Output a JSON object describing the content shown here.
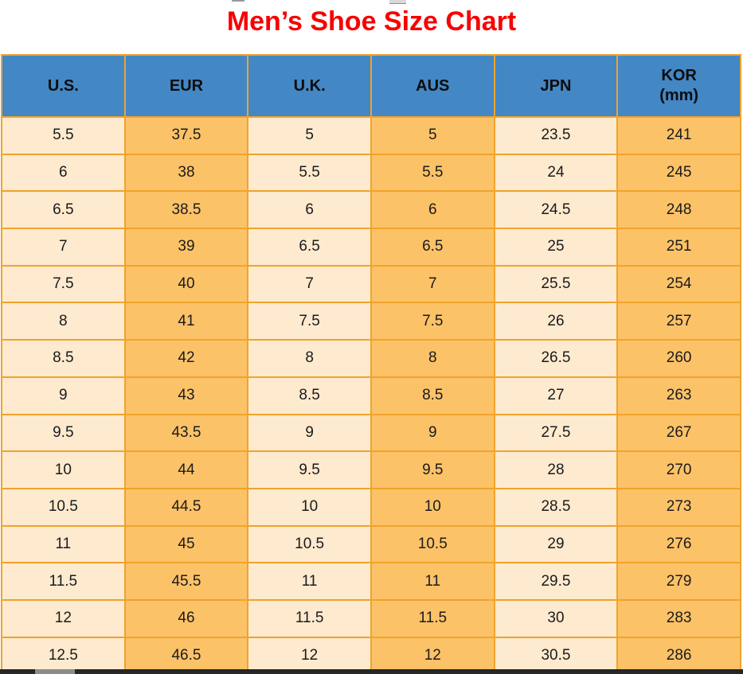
{
  "chart_data": {
    "type": "table",
    "title": "Men’s Shoe Size Chart",
    "columns": [
      {
        "label": "U.S.",
        "sub": ""
      },
      {
        "label": "EUR",
        "sub": ""
      },
      {
        "label": "U.K.",
        "sub": ""
      },
      {
        "label": "AUS",
        "sub": ""
      },
      {
        "label": "JPN",
        "sub": ""
      },
      {
        "label": "KOR",
        "sub": "(mm)"
      }
    ],
    "rows": [
      [
        "5.5",
        "37.5",
        "5",
        "5",
        "23.5",
        "241"
      ],
      [
        "6",
        "38",
        "5.5",
        "5.5",
        "24",
        "245"
      ],
      [
        "6.5",
        "38.5",
        "6",
        "6",
        "24.5",
        "248"
      ],
      [
        "7",
        "39",
        "6.5",
        "6.5",
        "25",
        "251"
      ],
      [
        "7.5",
        "40",
        "7",
        "7",
        "25.5",
        "254"
      ],
      [
        "8",
        "41",
        "7.5",
        "7.5",
        "26",
        "257"
      ],
      [
        "8.5",
        "42",
        "8",
        "8",
        "26.5",
        "260"
      ],
      [
        "9",
        "43",
        "8.5",
        "8.5",
        "27",
        "263"
      ],
      [
        "9.5",
        "43.5",
        "9",
        "9",
        "27.5",
        "267"
      ],
      [
        "10",
        "44",
        "9.5",
        "9.5",
        "28",
        "270"
      ],
      [
        "10.5",
        "44.5",
        "10",
        "10",
        "28.5",
        "273"
      ],
      [
        "11",
        "45",
        "10.5",
        "10.5",
        "29",
        "276"
      ],
      [
        "11.5",
        "45.5",
        "11",
        "11",
        "29.5",
        "279"
      ],
      [
        "12",
        "46",
        "11.5",
        "11.5",
        "30",
        "283"
      ],
      [
        "12.5",
        "46.5",
        "12",
        "12",
        "30.5",
        "286"
      ]
    ],
    "layout": {
      "grid": true,
      "column_fill_pattern": [
        "light",
        "dark",
        "light",
        "dark",
        "light",
        "dark"
      ]
    }
  },
  "colors": {
    "title_color": "#f80000",
    "header_bg": "#4387c5",
    "cell_light": "#fdeacf",
    "cell_dark": "#fcc268",
    "grid_color": "#f0a32b",
    "text_color": "#1b1b1b",
    "scrollbar_track": "#262626",
    "scrollbar_thumb": "#8c8c8c"
  }
}
